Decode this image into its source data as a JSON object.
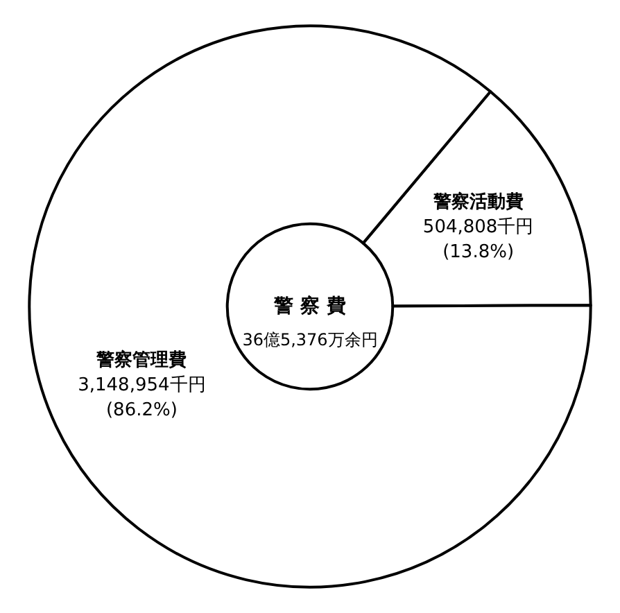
{
  "chart_data": {
    "type": "donut",
    "title": "警 察 費",
    "subtitle": "36億5,376万余円",
    "categories": [
      "警察活動費",
      "警察管理費"
    ],
    "values": [
      504808,
      3148954
    ],
    "colors": [
      "#ffffff",
      "#ffffff"
    ],
    "value_labels": [
      "504,808千円\n(13.8%)",
      "3,148,954千円\n(86.2%)"
    ]
  }
}
